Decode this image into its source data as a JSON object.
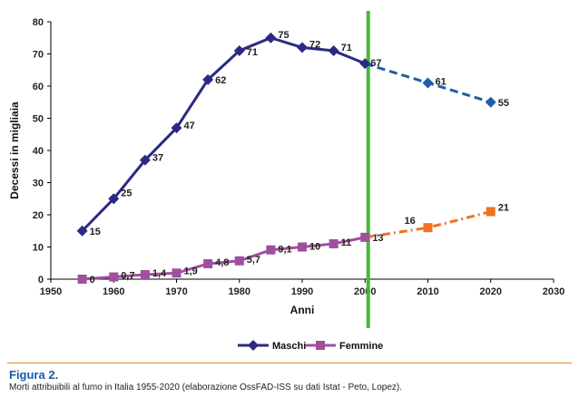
{
  "chart_data": {
    "type": "line",
    "xlabel": "Anni",
    "ylabel": "Decessi in migliaia",
    "xlim": [
      1950,
      2030
    ],
    "ylim": [
      0,
      80
    ],
    "x_ticks": [
      "1950",
      "1960",
      "1970",
      "1980",
      "1990",
      "2000",
      "2010",
      "2020",
      "2030"
    ],
    "y_ticks": [
      "0",
      "10",
      "20",
      "30",
      "40",
      "50",
      "60",
      "70",
      "80"
    ],
    "vertical_marker_x": 2000.5,
    "colors": {
      "maschi": "#2b2a82",
      "femmine": "#a04f9e",
      "projection_maschi": "#1d5ea8",
      "projection_femmine": "#ee7322",
      "marker_line": "#46b83a"
    },
    "legend_position": "bottom-center",
    "series": [
      {
        "name": "Maschi",
        "marker": "diamond",
        "observed": {
          "x": [
            1955,
            1960,
            1965,
            1970,
            1975,
            1980,
            1985,
            1990,
            1995,
            2000
          ],
          "y": [
            15,
            25,
            37,
            47,
            62,
            71,
            75,
            72,
            71,
            67
          ],
          "labels": [
            "15",
            "25",
            "37",
            "47",
            "62",
            "71",
            "75",
            "72",
            "71",
            "67"
          ]
        },
        "projected": {
          "x": [
            2010,
            2020
          ],
          "y": [
            61,
            55
          ],
          "labels": [
            "61",
            "55"
          ]
        }
      },
      {
        "name": "Femmine",
        "marker": "square",
        "observed": {
          "x": [
            1955,
            1960,
            1965,
            1970,
            1975,
            1980,
            1985,
            1990,
            1995,
            2000
          ],
          "y": [
            0,
            0.7,
            1.4,
            1.9,
            4.8,
            5.7,
            9.1,
            10,
            11,
            13
          ],
          "labels": [
            "0",
            "0,7",
            "1,4",
            "1,9",
            "4,8",
            "5,7",
            "9,1",
            "10",
            "11",
            "13"
          ]
        },
        "projected": {
          "x": [
            2010,
            2020
          ],
          "y": [
            16,
            21
          ],
          "labels": [
            "16",
            "21"
          ]
        }
      }
    ]
  },
  "caption": {
    "title": "Figura 2.",
    "text": "Morti attribuibili al fumo in Italia 1955-2020 (elaborazione OssFAD-ISS su dati Istat - Peto, Lopez)."
  }
}
